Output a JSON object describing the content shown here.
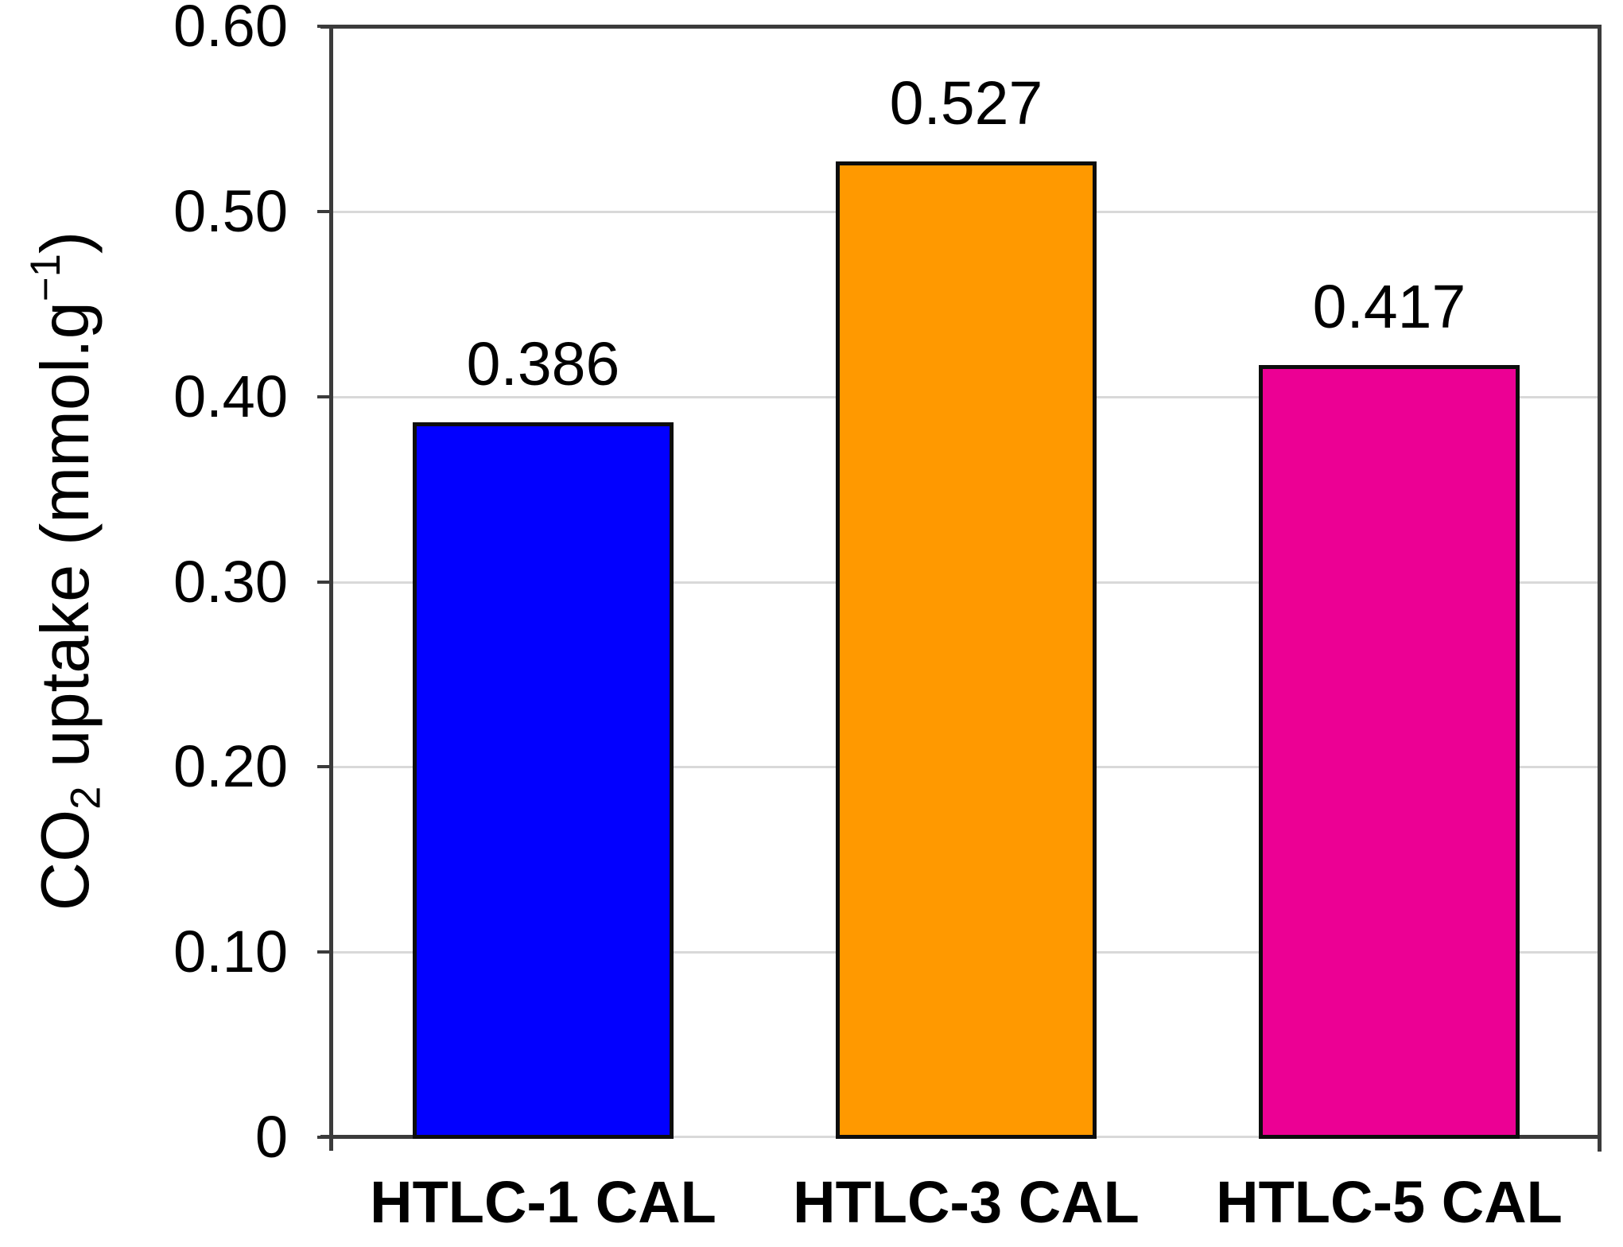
{
  "figure": {
    "background": "#ffffff",
    "text_color": "#000000"
  },
  "chart_data": {
    "type": "bar",
    "title": "",
    "xlabel": "",
    "ylabel": "CO2 uptake (mmol.g-1)",
    "ylabel_parts": {
      "pre": "CO",
      "sub": "2",
      "mid": " uptake (mmol.g",
      "sup": "−1",
      "post": ")"
    },
    "categories": [
      "HTLC-1 CAL",
      "HTLC-3 CAL",
      "HTLC-5 CAL"
    ],
    "values": [
      0.386,
      0.527,
      0.417
    ],
    "value_labels": [
      "0.386",
      "0.527",
      "0.417"
    ],
    "bar_colors": [
      "#0200ff",
      "#ff9900",
      "#ec0094"
    ],
    "bar_border_color": "#0d0d0d",
    "ylim": [
      0,
      0.6
    ],
    "yticks": [
      {
        "value": 0.6,
        "label": "0.60"
      },
      {
        "value": 0.5,
        "label": "0.50"
      },
      {
        "value": 0.4,
        "label": "0.40"
      },
      {
        "value": 0.3,
        "label": "0.30"
      },
      {
        "value": 0.2,
        "label": "0.20"
      },
      {
        "value": 0.1,
        "label": "0.10"
      },
      {
        "value": 0.0,
        "label": "0"
      }
    ],
    "grid": "horizontal",
    "grid_color": "#d9d9d9",
    "axis_color": "#3b3b3b",
    "legend": "none"
  }
}
